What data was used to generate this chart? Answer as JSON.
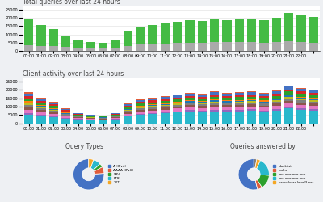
{
  "bg_color": "#eef0f3",
  "panel_bg": "#ffffff",
  "title1": "Total queries over last 24 hours",
  "title2": "Client activity over last 24 hours",
  "title3": "Query Types",
  "title4": "Queries answered by",
  "time_labels": [
    "00:00",
    "01:00",
    "02:00",
    "03:00",
    "04:00",
    "05:00",
    "06:00",
    "07:00",
    "08:00",
    "09:00",
    "10:00",
    "11:00",
    "12:00",
    "13:00",
    "14:00",
    "15:00",
    "16:00",
    "17:00",
    "18:00",
    "19:00",
    "20:00",
    "21:00",
    "22:00",
    ""
  ],
  "bar1_green": [
    19000,
    15500,
    13000,
    9000,
    6500,
    5200,
    5000,
    6500,
    12000,
    14500,
    15500,
    16500,
    17500,
    18500,
    18000,
    19500,
    18500,
    19000,
    19500,
    18500,
    20000,
    23000,
    21500,
    20500
  ],
  "bar1_gray": [
    3500,
    3000,
    2800,
    2500,
    2000,
    2000,
    1800,
    2200,
    3200,
    3800,
    4200,
    4500,
    4800,
    5000,
    5000,
    5300,
    5200,
    5300,
    5200,
    4800,
    5200,
    5800,
    5300,
    5100
  ],
  "bar2_cyan": [
    5000,
    4200,
    3500,
    2800,
    2200,
    2000,
    1800,
    2500,
    4200,
    5000,
    5500,
    6000,
    6500,
    7000,
    6800,
    7200,
    7000,
    7200,
    7500,
    6800,
    7800,
    9000,
    8000,
    7500
  ],
  "bar2_total": [
    19000,
    15500,
    13000,
    9000,
    6500,
    5200,
    5000,
    6500,
    12000,
    14500,
    15500,
    16500,
    17500,
    18500,
    18000,
    19500,
    18500,
    19000,
    19500,
    18500,
    20000,
    23000,
    21500,
    20500
  ],
  "yticks1": [
    0,
    5000,
    10000,
    15000,
    20000,
    25000
  ],
  "yticks2": [
    0,
    5000,
    10000,
    15000,
    20000,
    25000
  ],
  "query_types_sizes": [
    0.76,
    0.07,
    0.04,
    0.08,
    0.05
  ],
  "query_types_colors": [
    "#4472c4",
    "#e05c3a",
    "#2ca02c",
    "#29b8cc",
    "#f5a623"
  ],
  "query_types_labels": [
    "A (IPv4)",
    "AAAA (IPv6)",
    "SRV",
    "PTR",
    "TXT"
  ],
  "answered_by_sizes": [
    0.54,
    0.05,
    0.15,
    0.19,
    0.04,
    0.03
  ],
  "answered_by_colors": [
    "#4472c4",
    "#e05c3a",
    "#2ca02c",
    "#29b8cc",
    "#f5a623",
    "#7f7f7f"
  ],
  "answered_by_labels": [
    "blocklist",
    "cache",
    "one.one.one.one",
    "one.one.one.one",
    "b.resolvers.level3.net",
    ""
  ],
  "multi_colors": [
    "#29b8cc",
    "#9467bd",
    "#e377c2",
    "#8c564b",
    "#7f7f7f",
    "#bcbd22",
    "#1f77b4",
    "#ff7f0e",
    "#2ca02c",
    "#d62728",
    "#4472c4",
    "#e05c3a"
  ],
  "title_fontsize": 5.5,
  "tick_fontsize": 3.5
}
